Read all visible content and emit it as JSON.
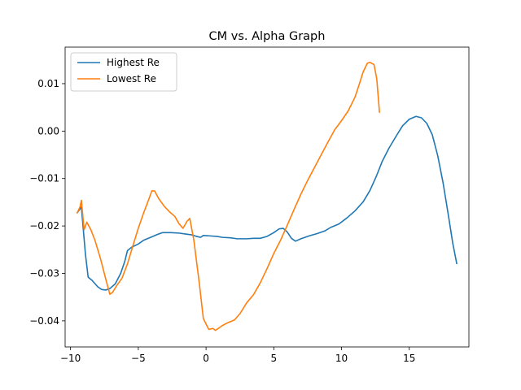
{
  "chart_data": {
    "type": "line",
    "title": "CM vs. Alpha Graph",
    "xlabel": "",
    "ylabel": "",
    "xlim": [
      -10.4,
      19.4
    ],
    "ylim": [
      -0.0455,
      0.0177
    ],
    "xticks": [
      -10,
      -5,
      0,
      5,
      10,
      15
    ],
    "xtick_labels": [
      "−10",
      "−5",
      "0",
      "5",
      "10",
      "15"
    ],
    "yticks": [
      -0.04,
      -0.03,
      -0.02,
      -0.01,
      0.0,
      0.01
    ],
    "ytick_labels": [
      "−0.04",
      "−0.03",
      "−0.02",
      "−0.01",
      "0.00",
      "0.01"
    ],
    "grid": false,
    "legend_position": "upper-left",
    "series": [
      {
        "name": "Highest Re",
        "color": "#1f77b4",
        "points": [
          [
            -9.5,
            -0.0172
          ],
          [
            -9.2,
            -0.016
          ],
          [
            -8.9,
            -0.026
          ],
          [
            -8.7,
            -0.0308
          ],
          [
            -8.4,
            -0.0315
          ],
          [
            -8.0,
            -0.0328
          ],
          [
            -7.7,
            -0.0334
          ],
          [
            -7.4,
            -0.0335
          ],
          [
            -7.1,
            -0.0332
          ],
          [
            -6.7,
            -0.0322
          ],
          [
            -6.3,
            -0.03
          ],
          [
            -6.0,
            -0.0275
          ],
          [
            -5.8,
            -0.0252
          ],
          [
            -5.5,
            -0.0245
          ],
          [
            -5.0,
            -0.0238
          ],
          [
            -4.6,
            -0.023
          ],
          [
            -4.0,
            -0.0223
          ],
          [
            -3.6,
            -0.0218
          ],
          [
            -3.2,
            -0.0214
          ],
          [
            -2.6,
            -0.0214
          ],
          [
            -2.0,
            -0.0215
          ],
          [
            -1.5,
            -0.0217
          ],
          [
            -1.0,
            -0.0219
          ],
          [
            -0.7,
            -0.0222
          ],
          [
            -0.4,
            -0.0224
          ],
          [
            -0.2,
            -0.022
          ],
          [
            0.3,
            -0.0221
          ],
          [
            0.8,
            -0.0222
          ],
          [
            1.2,
            -0.0224
          ],
          [
            1.8,
            -0.0225
          ],
          [
            2.3,
            -0.0227
          ],
          [
            3.0,
            -0.0227
          ],
          [
            3.5,
            -0.0226
          ],
          [
            4.0,
            -0.0226
          ],
          [
            4.5,
            -0.0222
          ],
          [
            5.0,
            -0.0214
          ],
          [
            5.4,
            -0.0206
          ],
          [
            5.7,
            -0.0205
          ],
          [
            6.0,
            -0.0213
          ],
          [
            6.3,
            -0.0226
          ],
          [
            6.6,
            -0.0232
          ],
          [
            7.0,
            -0.0227
          ],
          [
            7.6,
            -0.0221
          ],
          [
            8.2,
            -0.0216
          ],
          [
            8.8,
            -0.021
          ],
          [
            9.2,
            -0.0203
          ],
          [
            9.8,
            -0.0196
          ],
          [
            10.4,
            -0.0183
          ],
          [
            11.0,
            -0.0168
          ],
          [
            11.6,
            -0.0149
          ],
          [
            12.1,
            -0.0125
          ],
          [
            12.6,
            -0.0093
          ],
          [
            13.0,
            -0.0064
          ],
          [
            13.5,
            -0.0036
          ],
          [
            14.0,
            -0.0012
          ],
          [
            14.5,
            0.0011
          ],
          [
            15.0,
            0.0025
          ],
          [
            15.5,
            0.0031
          ],
          [
            15.9,
            0.0028
          ],
          [
            16.3,
            0.0016
          ],
          [
            16.7,
            -0.0008
          ],
          [
            17.1,
            -0.0052
          ],
          [
            17.5,
            -0.011
          ],
          [
            17.9,
            -0.018
          ],
          [
            18.2,
            -0.0235
          ],
          [
            18.5,
            -0.0279
          ]
        ]
      },
      {
        "name": "Lowest Re",
        "color": "#ff7f0e",
        "points": [
          [
            -9.5,
            -0.0172
          ],
          [
            -9.3,
            -0.016
          ],
          [
            -9.2,
            -0.0146
          ],
          [
            -9.0,
            -0.0208
          ],
          [
            -8.8,
            -0.0192
          ],
          [
            -8.5,
            -0.0208
          ],
          [
            -8.2,
            -0.023
          ],
          [
            -7.8,
            -0.0268
          ],
          [
            -7.4,
            -0.0312
          ],
          [
            -7.1,
            -0.0344
          ],
          [
            -6.9,
            -0.034
          ],
          [
            -6.6,
            -0.0326
          ],
          [
            -6.2,
            -0.031
          ],
          [
            -5.8,
            -0.028
          ],
          [
            -5.4,
            -0.0242
          ],
          [
            -5.0,
            -0.0205
          ],
          [
            -4.6,
            -0.0172
          ],
          [
            -4.2,
            -0.0142
          ],
          [
            -4.0,
            -0.0126
          ],
          [
            -3.8,
            -0.0126
          ],
          [
            -3.5,
            -0.0142
          ],
          [
            -3.1,
            -0.0158
          ],
          [
            -2.7,
            -0.017
          ],
          [
            -2.3,
            -0.018
          ],
          [
            -2.0,
            -0.0195
          ],
          [
            -1.7,
            -0.0205
          ],
          [
            -1.4,
            -0.019
          ],
          [
            -1.2,
            -0.0184
          ],
          [
            -0.9,
            -0.023
          ],
          [
            -0.5,
            -0.032
          ],
          [
            -0.2,
            -0.0395
          ],
          [
            0.2,
            -0.0418
          ],
          [
            0.5,
            -0.0416
          ],
          [
            0.7,
            -0.042
          ],
          [
            0.9,
            -0.0416
          ],
          [
            1.2,
            -0.041
          ],
          [
            1.6,
            -0.0404
          ],
          [
            2.1,
            -0.0398
          ],
          [
            2.5,
            -0.0385
          ],
          [
            3.0,
            -0.0362
          ],
          [
            3.5,
            -0.0345
          ],
          [
            4.0,
            -0.032
          ],
          [
            4.5,
            -0.029
          ],
          [
            5.0,
            -0.0258
          ],
          [
            5.5,
            -0.023
          ],
          [
            6.0,
            -0.0198
          ],
          [
            6.5,
            -0.0165
          ],
          [
            7.0,
            -0.0133
          ],
          [
            7.5,
            -0.0104
          ],
          [
            8.0,
            -0.0077
          ],
          [
            8.5,
            -0.005
          ],
          [
            9.0,
            -0.0023
          ],
          [
            9.5,
            0.0003
          ],
          [
            10.0,
            0.0022
          ],
          [
            10.5,
            0.0043
          ],
          [
            11.0,
            0.0072
          ],
          [
            11.3,
            0.0098
          ],
          [
            11.6,
            0.0125
          ],
          [
            11.9,
            0.0143
          ],
          [
            12.1,
            0.0145
          ],
          [
            12.4,
            0.014
          ],
          [
            12.6,
            0.011
          ],
          [
            12.8,
            0.004
          ]
        ]
      }
    ]
  }
}
